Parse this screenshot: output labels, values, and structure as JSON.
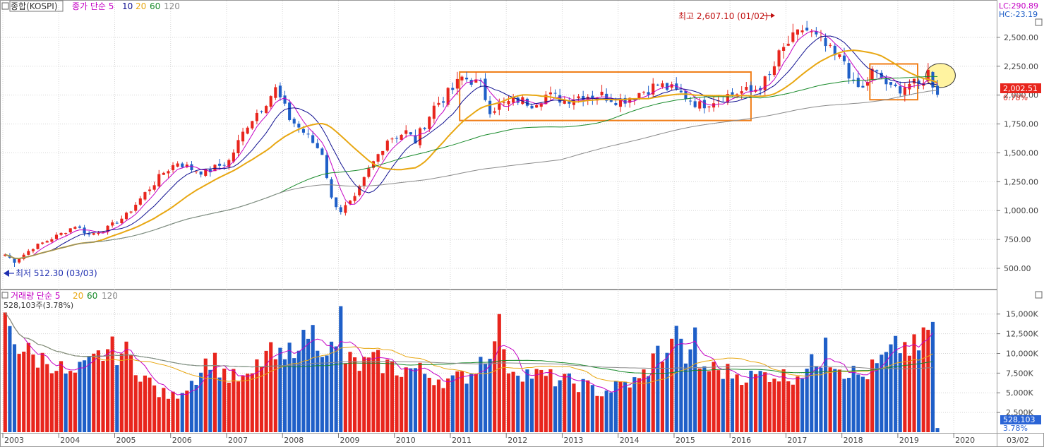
{
  "colors": {
    "up": "#e8251d",
    "down": "#1f5fc8",
    "ma5": "#c400c4",
    "ma10": "#101090",
    "ma20": "#e8a712",
    "ma60": "#188a2a",
    "ma120": "#8a8a8a",
    "box": "#f07e18",
    "highlight": "#fff3a0",
    "annotation": "#c01010",
    "price_box": "#e8251d",
    "volume_box": "#2a64d6",
    "axis_text": "#444444",
    "grid": "#d4d4d4"
  },
  "price_panel": {
    "title": "종합(KOSPI)",
    "legend": [
      {
        "text": "종가 단순 5",
        "color": "#c400c4"
      },
      {
        "text": "10",
        "color": "#101090"
      },
      {
        "text": "20",
        "color": "#e8a712"
      },
      {
        "text": "60",
        "color": "#188a2a"
      },
      {
        "text": "120",
        "color": "#8a8a8a"
      }
    ],
    "lc_label": "LC:290.89",
    "hc_label": "HC:-23.19",
    "high_annotation": "최고 2,607.10 (01/02)",
    "low_annotation": "최저 512.30 (03/03)",
    "current_price": "2,002.51",
    "current_change": "0.78%"
  },
  "volume_panel": {
    "title": "거래량 단순 5",
    "legend": [
      {
        "text": "20",
        "color": "#e8a712"
      },
      {
        "text": "60",
        "color": "#188a2a"
      },
      {
        "text": "120",
        "color": "#8a8a8a"
      }
    ],
    "current_text": "528,103주(3.78%)",
    "current_volume": "528,103",
    "current_pct": "3.78%"
  },
  "chart_data": {
    "type": "candlestick",
    "title": "종합(KOSPI)",
    "frequency": "monthly",
    "price_axis": {
      "ticks": [
        500,
        750,
        1000,
        1250,
        1500,
        1750,
        2000,
        2250,
        2500
      ],
      "labels": [
        "500.00",
        "750.00",
        "1,000.00",
        "1,250.00",
        "1,500.00",
        "1,750.00",
        "2,000.00",
        "2,250.00",
        "2,500.00"
      ],
      "range": [
        390,
        2640
      ]
    },
    "volume_axis": {
      "ticks": [
        2500,
        5000,
        7500,
        10000,
        12500,
        15000
      ],
      "labels": [
        "2,500K",
        "5,000K",
        "7,500K",
        "10,000K",
        "12,500K",
        "15,000K"
      ],
      "range": [
        0,
        16500
      ]
    },
    "x_axis": {
      "labels": [
        "2003",
        "2004",
        "2005",
        "2006",
        "2007",
        "2008",
        "2009",
        "2010",
        "2011",
        "2012",
        "2013",
        "2014",
        "2015",
        "2016",
        "2017",
        "2018",
        "2019",
        "2020"
      ],
      "last_label": "03/02"
    },
    "price_anchors": [
      [
        0,
        620
      ],
      [
        2,
        560
      ],
      [
        6,
        680
      ],
      [
        12,
        800
      ],
      [
        15,
        870
      ],
      [
        18,
        790
      ],
      [
        22,
        850
      ],
      [
        26,
        960
      ],
      [
        30,
        1150
      ],
      [
        34,
        1330
      ],
      [
        37,
        1420
      ],
      [
        40,
        1360
      ],
      [
        43,
        1330
      ],
      [
        48,
        1430
      ],
      [
        52,
        1750
      ],
      [
        56,
        1950
      ],
      [
        58,
        2050
      ],
      [
        61,
        1800
      ],
      [
        64,
        1680
      ],
      [
        68,
        1500
      ],
      [
        70,
        1100
      ],
      [
        72,
        1000
      ],
      [
        75,
        1100
      ],
      [
        78,
        1350
      ],
      [
        82,
        1620
      ],
      [
        86,
        1680
      ],
      [
        88,
        1600
      ],
      [
        92,
        1900
      ],
      [
        96,
        2050
      ],
      [
        98,
        2150
      ],
      [
        100,
        2130
      ],
      [
        102,
        2080
      ],
      [
        104,
        1880
      ],
      [
        107,
        1920
      ],
      [
        110,
        1960
      ],
      [
        113,
        1930
      ],
      [
        116,
        2000
      ],
      [
        120,
        1960
      ],
      [
        124,
        2000
      ],
      [
        128,
        2000
      ],
      [
        132,
        1950
      ],
      [
        136,
        2020
      ],
      [
        140,
        2090
      ],
      [
        143,
        2050
      ],
      [
        146,
        1990
      ],
      [
        149,
        1910
      ],
      [
        152,
        1960
      ],
      [
        155,
        2000
      ],
      [
        158,
        2030
      ],
      [
        160,
        2030
      ],
      [
        162,
        2080
      ],
      [
        164,
        2160
      ],
      [
        166,
        2340
      ],
      [
        168,
        2450
      ],
      [
        170,
        2520
      ],
      [
        172,
        2560
      ],
      [
        174,
        2490
      ],
      [
        176,
        2420
      ],
      [
        178,
        2330
      ],
      [
        180,
        2300
      ],
      [
        182,
        2080
      ],
      [
        184,
        2050
      ],
      [
        186,
        2200
      ],
      [
        188,
        2150
      ],
      [
        190,
        2050
      ],
      [
        192,
        2060
      ],
      [
        194,
        2100
      ],
      [
        196,
        2080
      ],
      [
        198,
        2200
      ],
      [
        199,
        2100
      ],
      [
        200,
        2000
      ]
    ],
    "high_point": {
      "value": 2607.1,
      "date": "01/02",
      "label": "최고 2,607.10 (01/02)"
    },
    "low_point": {
      "value": 512.3,
      "date": "03/03",
      "label": "최저 512.30 (03/03)"
    },
    "volume_anchors": [
      [
        0,
        15000
      ],
      [
        3,
        11000
      ],
      [
        6,
        9500
      ],
      [
        10,
        9000
      ],
      [
        14,
        7000
      ],
      [
        18,
        8500
      ],
      [
        22,
        10500
      ],
      [
        26,
        10000
      ],
      [
        30,
        7000
      ],
      [
        33,
        5000
      ],
      [
        36,
        4500
      ],
      [
        40,
        6500
      ],
      [
        44,
        9500
      ],
      [
        48,
        7000
      ],
      [
        52,
        6500
      ],
      [
        56,
        10000
      ],
      [
        60,
        9000
      ],
      [
        64,
        13500
      ],
      [
        68,
        11500
      ],
      [
        72,
        9500
      ],
      [
        76,
        8500
      ],
      [
        80,
        9000
      ],
      [
        84,
        8000
      ],
      [
        88,
        8000
      ],
      [
        92,
        7000
      ],
      [
        96,
        6500
      ],
      [
        100,
        7500
      ],
      [
        104,
        11000
      ],
      [
        108,
        8500
      ],
      [
        112,
        7500
      ],
      [
        116,
        7000
      ],
      [
        120,
        6500
      ],
      [
        124,
        6000
      ],
      [
        128,
        5000
      ],
      [
        132,
        6000
      ],
      [
        136,
        6500
      ],
      [
        140,
        10000
      ],
      [
        144,
        11000
      ],
      [
        148,
        8500
      ],
      [
        152,
        8000
      ],
      [
        156,
        7500
      ],
      [
        160,
        7000
      ],
      [
        164,
        7500
      ],
      [
        168,
        7000
      ],
      [
        172,
        8000
      ],
      [
        176,
        10000
      ],
      [
        180,
        8000
      ],
      [
        184,
        7000
      ],
      [
        188,
        9000
      ],
      [
        192,
        11000
      ],
      [
        196,
        10500
      ],
      [
        199,
        13500
      ],
      [
        200,
        528
      ]
    ],
    "volume_spikes": [
      [
        0,
        15200
      ],
      [
        64,
        13000
      ],
      [
        72,
        16000
      ],
      [
        106,
        15000
      ],
      [
        144,
        13500
      ],
      [
        148,
        13300
      ],
      [
        176,
        12000
      ],
      [
        198,
        13000
      ],
      [
        199,
        14000
      ]
    ],
    "annotations": [
      {
        "type": "range-box",
        "from": 98,
        "to": 160,
        "low": 1780,
        "high": 2200
      },
      {
        "type": "range-box",
        "from": 186,
        "to": 211,
        "low": 1960,
        "high": 2270
      },
      {
        "type": "circle-highlight",
        "at": 204,
        "value": 2170
      }
    ]
  }
}
